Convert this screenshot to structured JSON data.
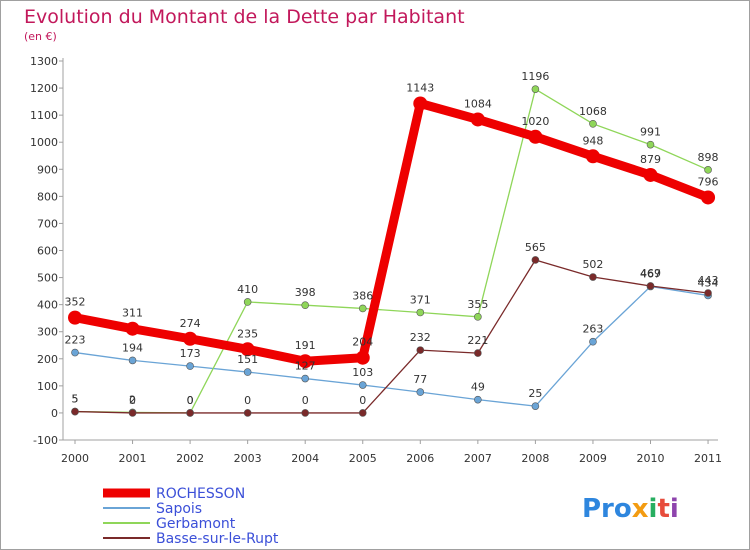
{
  "chart_data": {
    "type": "line",
    "title": "Evolution du Montant de la Dette par Habitant",
    "subtitle": "(en €)",
    "x": [
      "2000",
      "2001",
      "2002",
      "2003",
      "2004",
      "2005",
      "2006",
      "2007",
      "2008",
      "2009",
      "2010",
      "2011"
    ],
    "ylim": [
      -100,
      1300
    ],
    "yticks": [
      -100,
      0,
      100,
      200,
      300,
      400,
      500,
      600,
      700,
      800,
      900,
      1000,
      1100,
      1200,
      1300
    ],
    "grid": false,
    "legend_position": "bottom-left",
    "series": [
      {
        "name": "ROCHESSON",
        "color": "#ee0000",
        "values": [
          352,
          311,
          274,
          235,
          191,
          204,
          1143,
          1084,
          1020,
          948,
          879,
          796
        ]
      },
      {
        "name": "Sapois",
        "color": "#6aa4d6",
        "values": [
          223,
          194,
          173,
          151,
          127,
          103,
          77,
          49,
          25,
          263,
          467,
          434
        ]
      },
      {
        "name": "Gerbamont",
        "color": "#8fd659",
        "values": [
          5,
          2,
          0,
          410,
          398,
          386,
          371,
          355,
          1196,
          1068,
          991,
          898
        ]
      },
      {
        "name": "Basse-sur-le-Rupt",
        "color": "#7a2a2a",
        "values": [
          5,
          0,
          0,
          0,
          0,
          0,
          232,
          221,
          565,
          502,
          469,
          443
        ]
      }
    ]
  },
  "branding": {
    "logo_text": "Proxiti"
  }
}
